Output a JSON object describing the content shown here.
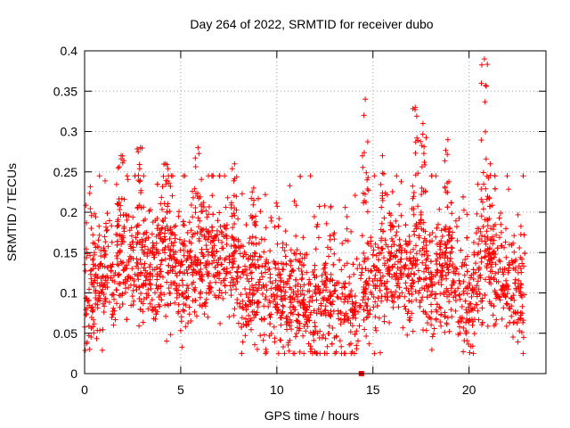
{
  "chart_data": {
    "type": "scatter",
    "title": "Day 264 of 2022, SRMTID for receiver dubo",
    "xlabel": "GPS time / hours",
    "ylabel": "SRMTID / TECUs",
    "xlim": [
      0,
      24
    ],
    "ylim": [
      0,
      0.4
    ],
    "xticks": [
      0,
      5,
      10,
      15,
      20
    ],
    "xtick_labels": [
      "0",
      "5",
      "10",
      "15",
      "20"
    ],
    "yticks": [
      0,
      0.05,
      0.1,
      0.15,
      0.2,
      0.25,
      0.3,
      0.35,
      0.4
    ],
    "ytick_labels": [
      "0",
      "0.05",
      "0.1",
      "0.15",
      "0.2",
      "0.25",
      "0.3",
      "0.35",
      "0.4"
    ],
    "grid": true,
    "marker": "+",
    "color": "#ff0000",
    "x_data_start": 0.0,
    "x_data_end": 22.9,
    "zero_marker_x": 14.4,
    "baseline_band": [
      [
        0,
        0.1
      ],
      [
        1,
        0.12
      ],
      [
        2,
        0.14
      ],
      [
        3,
        0.13
      ],
      [
        4,
        0.14
      ],
      [
        5,
        0.12
      ],
      [
        6,
        0.14
      ],
      [
        7,
        0.15
      ],
      [
        8,
        0.12
      ],
      [
        9,
        0.11
      ],
      [
        10,
        0.1
      ],
      [
        11,
        0.09
      ],
      [
        12,
        0.09
      ],
      [
        13,
        0.09
      ],
      [
        14,
        0.08
      ],
      [
        15,
        0.12
      ],
      [
        16,
        0.13
      ],
      [
        17,
        0.13
      ],
      [
        18,
        0.12
      ],
      [
        19,
        0.12
      ],
      [
        20,
        0.09
      ],
      [
        21,
        0.13
      ],
      [
        22,
        0.11
      ],
      [
        22.9,
        0.1
      ]
    ],
    "spikes": [
      {
        "x": 1.9,
        "y": 0.27
      },
      {
        "x": 2.9,
        "y": 0.28
      },
      {
        "x": 4.2,
        "y": 0.26
      },
      {
        "x": 5.9,
        "y": 0.28
      },
      {
        "x": 7.8,
        "y": 0.26
      },
      {
        "x": 8.8,
        "y": 0.23
      },
      {
        "x": 14.6,
        "y": 0.34
      },
      {
        "x": 15.5,
        "y": 0.27
      },
      {
        "x": 17.2,
        "y": 0.33
      },
      {
        "x": 17.6,
        "y": 0.31
      },
      {
        "x": 18.9,
        "y": 0.29
      },
      {
        "x": 20.8,
        "y": 0.39
      },
      {
        "x": 21.1,
        "y": 0.26
      }
    ]
  }
}
